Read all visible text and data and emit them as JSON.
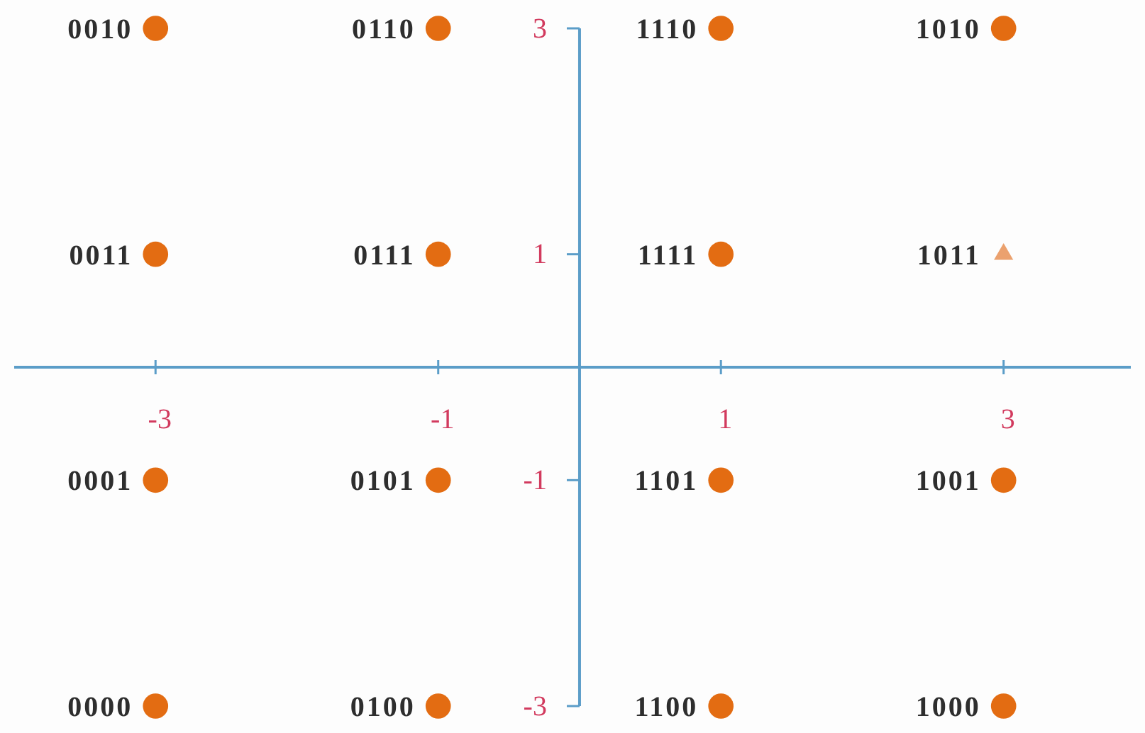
{
  "chart_data": {
    "type": "scatter",
    "xlim": [
      -4,
      3.9
    ],
    "ylim": [
      -3,
      3
    ],
    "xticks": [
      -3,
      -1,
      1,
      3
    ],
    "yticks": [
      -3,
      -1,
      1,
      3
    ],
    "marker": "circle",
    "series": [
      {
        "color": "#e36c12",
        "x": [
          -3,
          -1,
          1,
          3,
          -3,
          -1,
          1,
          -3,
          -1,
          1,
          3,
          -3,
          -1,
          1,
          3
        ],
        "values": [
          3,
          3,
          3,
          3,
          1,
          1,
          1,
          -1,
          -1,
          -1,
          -1,
          -3,
          -3,
          -3,
          -3
        ]
      },
      {
        "color": "#eba16e",
        "marker": "triangle",
        "x": [
          3
        ],
        "values": [
          1
        ]
      }
    ],
    "annotations": [
      {
        "text": "0010",
        "x": -3,
        "y": 3
      },
      {
        "text": "0110",
        "x": -1,
        "y": 3
      },
      {
        "text": "1110",
        "x": 1,
        "y": 3
      },
      {
        "text": "1010",
        "x": 3,
        "y": 3
      },
      {
        "text": "0011",
        "x": -3,
        "y": 1
      },
      {
        "text": "0111",
        "x": -1,
        "y": 1
      },
      {
        "text": "1111",
        "x": 1,
        "y": 1
      },
      {
        "text": "1011",
        "x": 3,
        "y": 1
      },
      {
        "text": "0001",
        "x": -3,
        "y": -1
      },
      {
        "text": "0101",
        "x": -1,
        "y": -1
      },
      {
        "text": "1101",
        "x": 1,
        "y": -1
      },
      {
        "text": "1001",
        "x": 3,
        "y": -1
      },
      {
        "text": "0000",
        "x": -3,
        "y": -3
      },
      {
        "text": "0100",
        "x": -1,
        "y": -3
      },
      {
        "text": "1100",
        "x": 1,
        "y": -3
      },
      {
        "text": "1000",
        "x": 3,
        "y": -3
      }
    ]
  }
}
